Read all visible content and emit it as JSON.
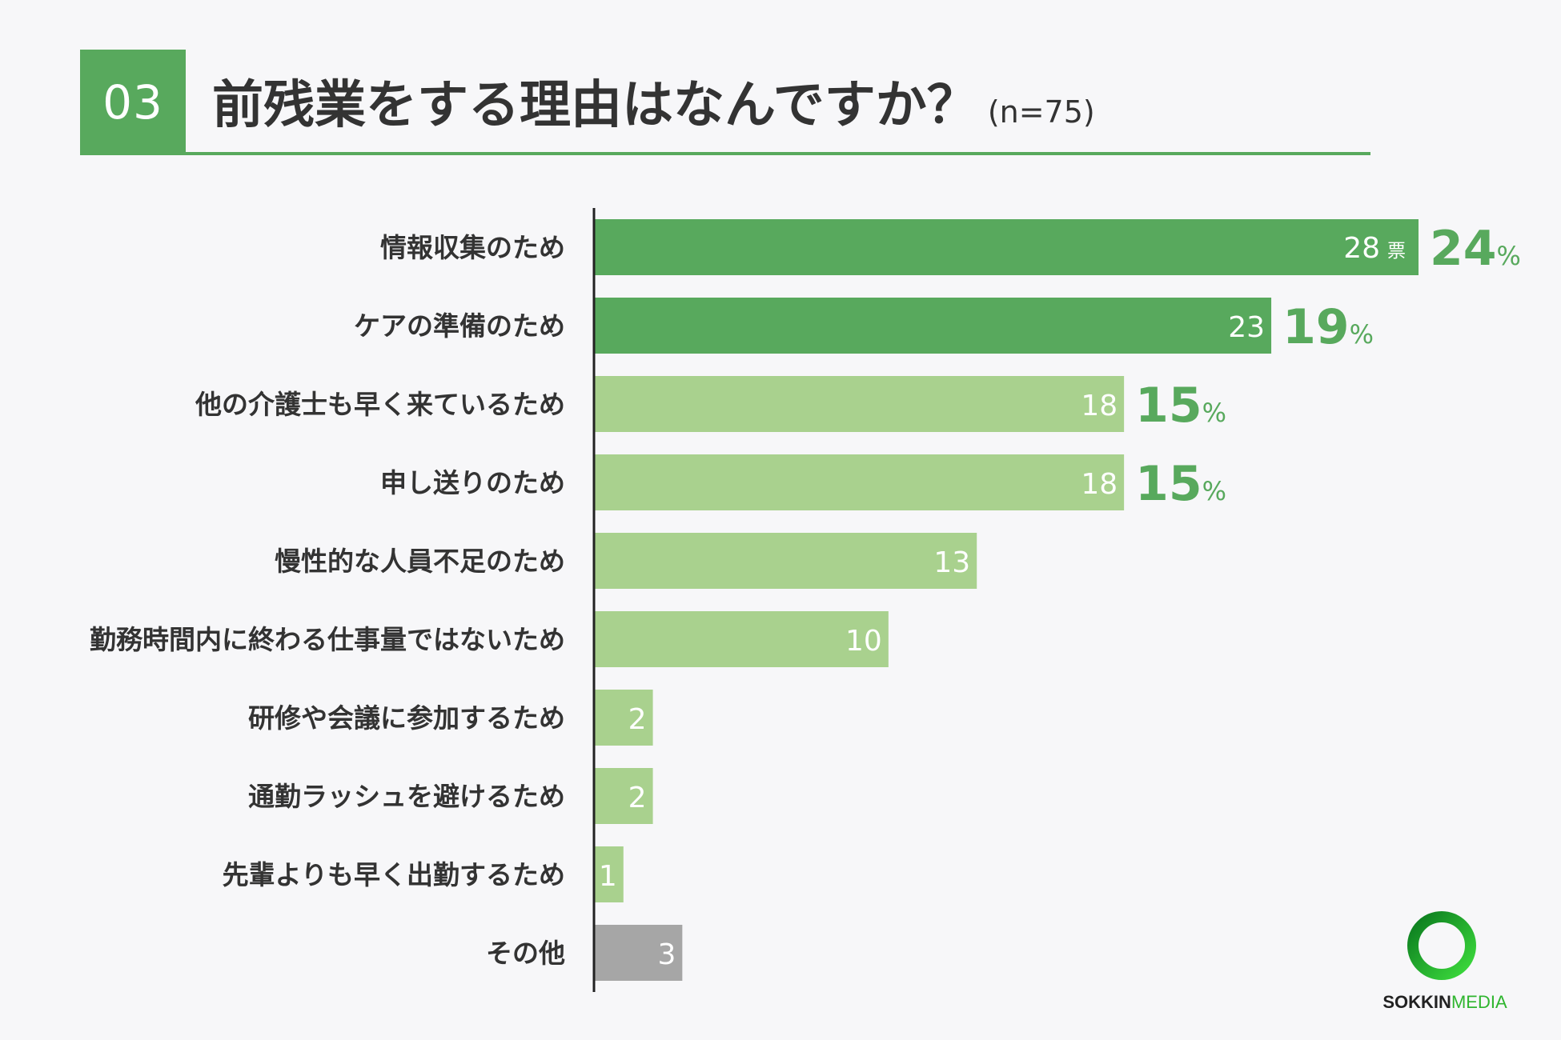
{
  "header": {
    "number": "03",
    "title": "前残業をする理由はなんですか？",
    "sample": "(n=75)"
  },
  "colors": {
    "accent": "#58a95d",
    "bar_strong": "#58a95d",
    "bar_light": "#a9d18e",
    "bar_other": "#a6a6a6",
    "percent_text": "#58a95d",
    "axis": "#222222"
  },
  "chart_data": {
    "type": "bar",
    "orientation": "horizontal",
    "categories": [
      "情報収集のため",
      "ケアの準備のため",
      "他の介護士も早く来ているため",
      "申し送りのため",
      "慢性的な人員不足のため",
      "勤務時間内に終わる仕事量ではないため",
      "研修や会議に参加するため",
      "通勤ラッシュを避けるため",
      "先輩よりも早く出勤するため",
      "その他"
    ],
    "values": [
      28,
      23,
      18,
      18,
      13,
      10,
      2,
      2,
      1,
      3
    ],
    "value_unit_first": "票",
    "percent_labels": [
      "24",
      "19",
      "15",
      "15",
      null,
      null,
      null,
      null,
      null,
      null
    ],
    "percent_unit": "%",
    "bar_styles": [
      "strong",
      "strong",
      "light",
      "light",
      "light",
      "light",
      "light",
      "light",
      "light",
      "other"
    ],
    "xlim": [
      0,
      28
    ]
  },
  "logo": {
    "part1": "SOKKIN",
    "part2": "MEDIA"
  }
}
